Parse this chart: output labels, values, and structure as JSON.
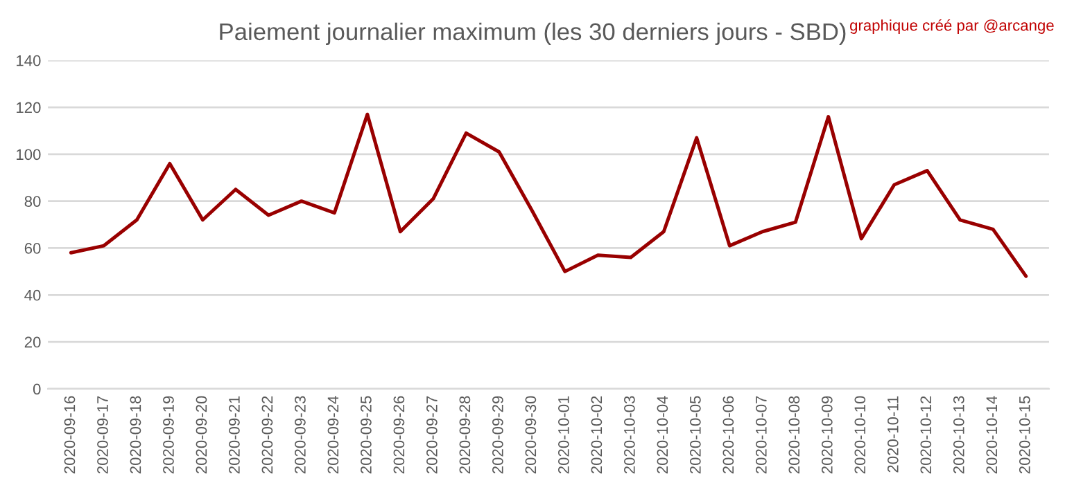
{
  "chart_data": {
    "type": "line",
    "title": "Paiement journalier maximum (les 30 derniers jours - SBD)",
    "annotations": [
      "graphique créé par @arcange"
    ],
    "categories": [
      "2020-09-16",
      "2020-09-17",
      "2020-09-18",
      "2020-09-19",
      "2020-09-20",
      "2020-09-21",
      "2020-09-22",
      "2020-09-23",
      "2020-09-24",
      "2020-09-25",
      "2020-09-26",
      "2020-09-27",
      "2020-09-28",
      "2020-09-29",
      "2020-09-30",
      "2020-10-01",
      "2020-10-02",
      "2020-10-03",
      "2020-10-04",
      "2020-10-05",
      "2020-10-06",
      "2020-10-07",
      "2020-10-08",
      "2020-10-09",
      "2020-10-10",
      "2020-10-11",
      "2020-10-12",
      "2020-10-13",
      "2020-10-14",
      "2020-10-15"
    ],
    "series": [
      {
        "color": "#990000",
        "values": [
          58,
          61,
          72,
          96,
          72,
          85,
          74,
          80,
          75,
          117,
          67,
          81,
          109,
          101,
          76,
          50,
          57,
          56,
          67,
          107,
          61,
          67,
          71,
          116,
          64,
          87,
          93,
          72,
          68,
          48
        ]
      }
    ],
    "ylim": [
      0,
      140
    ],
    "yticks": [
      0,
      20,
      40,
      60,
      80,
      100,
      120,
      140
    ],
    "grid": "y",
    "legend": false,
    "line_style": "solid",
    "marker": "none"
  }
}
